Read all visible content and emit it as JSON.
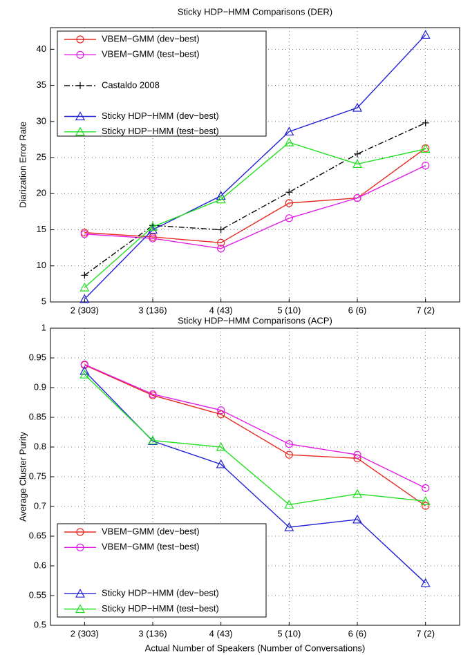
{
  "chart_data": [
    {
      "type": "line",
      "title": "Sticky HDP−HMM Comparisons (DER)",
      "ylabel": "Diarization Error Rate",
      "categories": [
        "2 (303)",
        "3 (136)",
        "4 (43)",
        "5 (10)",
        "6 (6)",
        "7 (2)"
      ],
      "ylim": [
        5,
        43
      ],
      "yticks": [
        5,
        10,
        15,
        20,
        25,
        30,
        35,
        40
      ],
      "grid": true,
      "legend": "upper left",
      "series": [
        {
          "name": "VBEM−GMM (dev−best)",
          "color": "#e8281e",
          "marker": "circle",
          "linestyle": "solid",
          "values": [
            14.6,
            14.0,
            13.2,
            18.7,
            19.4,
            26.3
          ]
        },
        {
          "name": "VBEM−GMM (test−best)",
          "color": "#e01be6",
          "marker": "circle",
          "linestyle": "solid",
          "values": [
            14.4,
            13.8,
            12.4,
            16.6,
            19.4,
            23.9
          ]
        },
        {
          "name": "Castaldo 2008",
          "color": "#000000",
          "marker": "plus",
          "linestyle": "dashdot",
          "values": [
            8.7,
            15.6,
            15.0,
            20.2,
            25.5,
            29.8
          ]
        },
        {
          "name": "Sticky HDP−HMM (dev−best)",
          "color": "#1f1fd6",
          "marker": "triangle",
          "linestyle": "solid",
          "values": [
            5.4,
            15.0,
            19.7,
            28.6,
            31.9,
            42.0
          ]
        },
        {
          "name": "Sticky HDP−HMM (test−best)",
          "color": "#1fe01f",
          "marker": "triangle",
          "linestyle": "solid",
          "values": [
            7.0,
            15.4,
            19.2,
            27.1,
            24.1,
            26.2
          ]
        }
      ]
    },
    {
      "type": "line",
      "title": "Sticky HDP−HMM Comparisons (ACP)",
      "ylabel": "Average Cluster Purity",
      "xlabel": "Actual Number of Speakers (Number of Conversations)",
      "categories": [
        "2 (303)",
        "3 (136)",
        "4 (43)",
        "5 (10)",
        "6 (6)",
        "7 (2)"
      ],
      "ylim": [
        0.5,
        1
      ],
      "yticks": [
        0.5,
        0.55,
        0.6,
        0.65,
        0.7,
        0.75,
        0.8,
        0.85,
        0.9,
        0.95,
        1
      ],
      "grid": true,
      "legend": "lower left",
      "series": [
        {
          "name": "VBEM−GMM (dev−best)",
          "color": "#e8281e",
          "marker": "circle",
          "linestyle": "solid",
          "values": [
            0.938,
            0.887,
            0.855,
            0.787,
            0.781,
            0.701
          ]
        },
        {
          "name": "VBEM−GMM (test−best)",
          "color": "#e01be6",
          "marker": "circle",
          "linestyle": "solid",
          "values": [
            0.939,
            0.889,
            0.862,
            0.805,
            0.787,
            0.731
          ]
        },
        {
          "name": "Sticky HDP−HMM (dev−best)",
          "color": "#1f1fd6",
          "marker": "triangle",
          "linestyle": "solid",
          "values": [
            0.928,
            0.81,
            0.771,
            0.665,
            0.678,
            0.571
          ]
        },
        {
          "name": "Sticky HDP−HMM (test−best)",
          "color": "#1fe01f",
          "marker": "triangle",
          "linestyle": "solid",
          "values": [
            0.922,
            0.811,
            0.8,
            0.703,
            0.721,
            0.709
          ]
        }
      ]
    }
  ]
}
